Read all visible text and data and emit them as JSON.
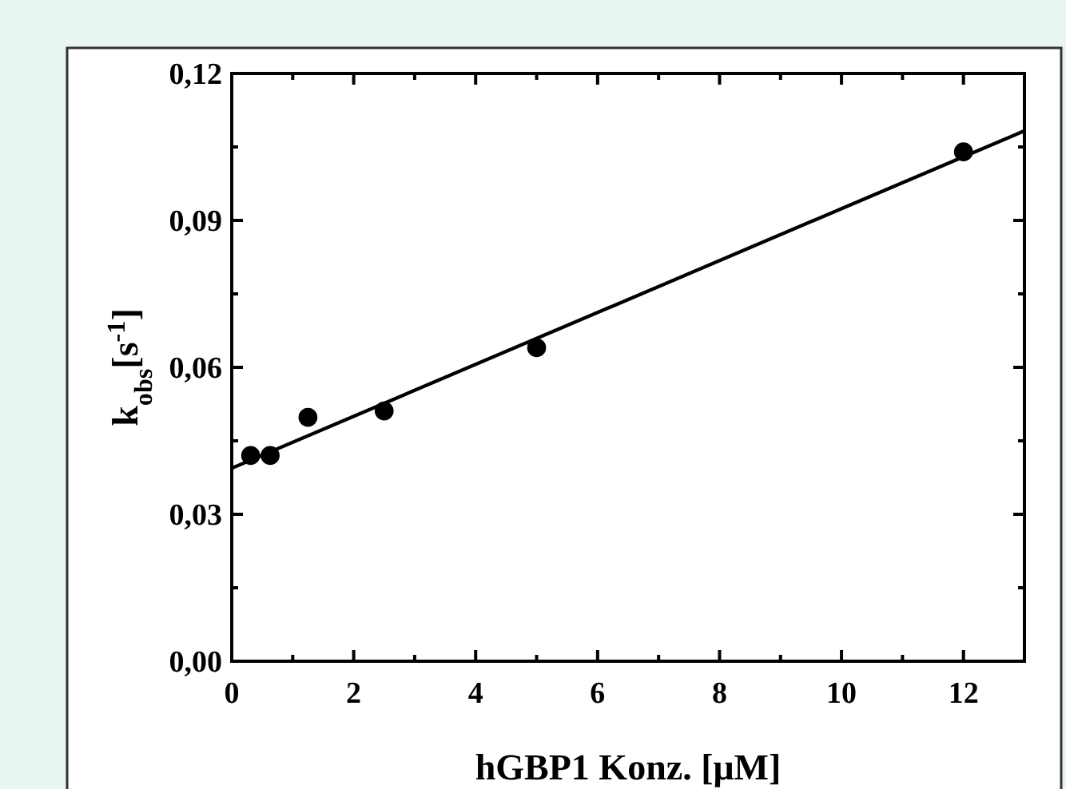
{
  "chart_data": {
    "type": "scatter",
    "xlabel": "hGBP1 Konz. [μM]",
    "ylabel": "k$_{obs}$[s$^{-1}$]",
    "xlim": [
      0,
      13
    ],
    "ylim": [
      0,
      0.12
    ],
    "xticks": [
      0,
      {
        "value": 1,
        "label": null
      },
      2,
      {
        "value": 3,
        "label": null
      },
      4,
      {
        "value": 5,
        "label": null
      },
      6,
      {
        "value": 7,
        "label": null
      },
      8,
      {
        "value": 9,
        "label": null
      },
      10,
      {
        "value": 11,
        "label": null
      },
      12
    ],
    "yticks": [
      {
        "value": 0,
        "label": "0,00"
      },
      {
        "value": 0.015,
        "label": null
      },
      {
        "value": 0.03,
        "label": "0,03"
      },
      {
        "value": 0.045,
        "label": null
      },
      {
        "value": 0.06,
        "label": "0,06"
      },
      {
        "value": 0.075,
        "label": null
      },
      {
        "value": 0.09,
        "label": "0,09"
      },
      {
        "value": 0.105,
        "label": null
      },
      {
        "value": 0.12,
        "label": "0,12"
      }
    ],
    "grid": false,
    "series": [
      {
        "marker": "circle",
        "color": "#000000",
        "x": [
          0.31,
          0.63,
          1.25,
          2.5,
          5,
          12
        ],
        "values": [
          0.042,
          0.042,
          0.0498,
          0.0511,
          0.064,
          0.104
        ]
      },
      {
        "type": "line",
        "marker": "none",
        "color": "#000000",
        "x": [
          0,
          13
        ],
        "values": [
          0.0394,
          0.1083
        ]
      }
    ]
  }
}
